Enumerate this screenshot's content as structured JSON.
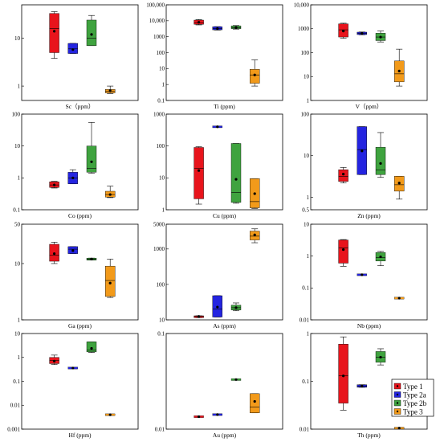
{
  "chart_data": [
    {
      "type": "box",
      "xlabel": "Sc（ppm）",
      "yscale": "log",
      "ylim": [
        0.5,
        50
      ],
      "yticks": [
        {
          "v": 1,
          "t": "1"
        },
        {
          "v": 10,
          "t": "10"
        }
      ],
      "boxes": [
        {
          "group": "Type 1",
          "whisker_low": 3.8,
          "q1": 5,
          "median": 16,
          "q3": 33,
          "whisker_high": 36,
          "mean": 14
        },
        {
          "group": "Type 2a",
          "whisker_low": 4.8,
          "q1": 4.8,
          "median": 6,
          "q3": 7.8,
          "whisker_high": 7.8,
          "mean": 5.8
        },
        {
          "group": "Type 2b",
          "whisker_low": 7,
          "q1": 7,
          "median": 10,
          "q3": 24,
          "whisker_high": 30,
          "mean": 12
        },
        {
          "group": "Type 3",
          "whisker_low": 0.7,
          "q1": 0.72,
          "median": 0.78,
          "q3": 0.85,
          "whisker_high": 1.0,
          "mean": 0.8
        }
      ]
    },
    {
      "type": "box",
      "xlabel": "Ti (ppm)",
      "yscale": "log",
      "ylim": [
        0.1,
        100000
      ],
      "yticks": [
        {
          "v": 0.1,
          "t": "0.1"
        },
        {
          "v": 1,
          "t": "1"
        },
        {
          "v": 10,
          "t": "10"
        },
        {
          "v": 100,
          "t": "100"
        },
        {
          "v": 1000,
          "t": "1000"
        },
        {
          "v": 10000,
          "t": "10,000"
        },
        {
          "v": 100000,
          "t": "100,000"
        }
      ],
      "boxes": [
        {
          "group": "Type 1",
          "whisker_low": 5500,
          "q1": 6000,
          "median": 7500,
          "q3": 11000,
          "whisker_high": 12000,
          "mean": 8000
        },
        {
          "group": "Type 2a",
          "whisker_low": 2600,
          "q1": 2700,
          "median": 3200,
          "q3": 4200,
          "whisker_high": 4300,
          "mean": 3200
        },
        {
          "group": "Type 2b",
          "whisker_low": 3000,
          "q1": 3200,
          "median": 3600,
          "q3": 4800,
          "whisker_high": 5000,
          "mean": 3700
        },
        {
          "group": "Type 3",
          "whisker_low": 0.8,
          "q1": 1.2,
          "median": 4,
          "q3": 9,
          "whisker_high": 35,
          "mean": 4
        }
      ]
    },
    {
      "type": "box",
      "xlabel": "V（ppm）",
      "yscale": "log",
      "ylim": [
        1,
        10000
      ],
      "yticks": [
        {
          "v": 1,
          "t": "1"
        },
        {
          "v": 10,
          "t": "10"
        },
        {
          "v": 100,
          "t": "100"
        },
        {
          "v": 1000,
          "t": "1000"
        },
        {
          "v": 10000,
          "t": "10,000"
        }
      ],
      "boxes": [
        {
          "group": "Type 1",
          "whisker_low": 400,
          "q1": 450,
          "median": 900,
          "q3": 1600,
          "whisker_high": 1700,
          "mean": 800
        },
        {
          "group": "Type 2a",
          "whisker_low": 560,
          "q1": 570,
          "median": 640,
          "q3": 720,
          "whisker_high": 730,
          "mean": 640
        },
        {
          "group": "Type 2b",
          "whisker_low": 280,
          "q1": 320,
          "median": 450,
          "q3": 650,
          "whisker_high": 800,
          "mean": 450
        },
        {
          "group": "Type 3",
          "whisker_low": 4,
          "q1": 6,
          "median": 13,
          "q3": 45,
          "whisker_high": 140,
          "mean": 17
        }
      ]
    },
    {
      "type": "box",
      "xlabel": "Co (ppm)",
      "yscale": "log",
      "ylim": [
        0.1,
        100
      ],
      "yticks": [
        {
          "v": 0.1,
          "t": "0.1"
        },
        {
          "v": 1,
          "t": "1"
        },
        {
          "v": 10,
          "t": "10"
        },
        {
          "v": 100,
          "t": "100"
        }
      ],
      "boxes": [
        {
          "group": "Type 1",
          "whisker_low": 0.48,
          "q1": 0.5,
          "median": 0.6,
          "q3": 0.75,
          "whisker_high": 0.78,
          "mean": 0.6
        },
        {
          "group": "Type 2a",
          "whisker_low": 0.65,
          "q1": 0.65,
          "median": 1.0,
          "q3": 1.5,
          "whisker_high": 1.8,
          "mean": 1.0
        },
        {
          "group": "Type 2b",
          "whisker_low": 1.4,
          "q1": 1.5,
          "median": 2,
          "q3": 10,
          "whisker_high": 55,
          "mean": 3.2
        },
        {
          "group": "Type 3",
          "whisker_low": 0.24,
          "q1": 0.25,
          "median": 0.3,
          "q3": 0.38,
          "whisker_high": 0.55,
          "mean": 0.3
        }
      ]
    },
    {
      "type": "box",
      "xlabel": "Cu (ppm)",
      "yscale": "log",
      "ylim": [
        1,
        1000
      ],
      "yticks": [
        {
          "v": 1,
          "t": "1"
        },
        {
          "v": 10,
          "t": "10"
        },
        {
          "v": 100,
          "t": "100"
        },
        {
          "v": 1000,
          "t": "1000"
        }
      ],
      "boxes": [
        {
          "group": "Type 1",
          "whisker_low": 1.5,
          "q1": 2.2,
          "median": 20,
          "q3": 90,
          "whisker_high": 95,
          "mean": 17
        },
        {
          "group": "Type 2a",
          "whisker_low": 400,
          "q1": 400,
          "median": 400,
          "q3": 400,
          "whisker_high": 400,
          "mean": 400
        },
        {
          "group": "Type 2b",
          "whisker_low": 1.6,
          "q1": 1.7,
          "median": 3.5,
          "q3": 120,
          "whisker_high": 120,
          "mean": 9
        },
        {
          "group": "Type 3",
          "whisker_low": 1.1,
          "q1": 1.15,
          "median": 1.8,
          "q3": 9.5,
          "whisker_high": 9.5,
          "mean": 3.2
        }
      ]
    },
    {
      "type": "box",
      "xlabel": "Zn (ppm)",
      "yscale": "log",
      "ylim": [
        0.5,
        100
      ],
      "yticks": [
        {
          "v": 0.5,
          "t": "0.5"
        },
        {
          "v": 1,
          "t": "1"
        },
        {
          "v": 10,
          "t": "10"
        },
        {
          "v": 100,
          "t": "100"
        }
      ],
      "boxes": [
        {
          "group": "Type 1",
          "whisker_low": 2.2,
          "q1": 2.4,
          "median": 3.2,
          "q3": 4.6,
          "whisker_high": 5.2,
          "mean": 3.6
        },
        {
          "group": "Type 2a",
          "whisker_low": 3.5,
          "q1": 3.5,
          "median": 14,
          "q3": 50,
          "whisker_high": 50,
          "mean": 13
        },
        {
          "group": "Type 2b",
          "whisker_low": 3,
          "q1": 3.5,
          "median": 4.5,
          "q3": 16,
          "whisker_high": 36,
          "mean": 6.5
        },
        {
          "group": "Type 3",
          "whisker_low": 0.9,
          "q1": 1.4,
          "median": 2,
          "q3": 3.2,
          "whisker_high": 3.2,
          "mean": 2.2
        }
      ]
    },
    {
      "type": "box",
      "xlabel": "Ga (ppm)",
      "yscale": "log",
      "ylim": [
        1,
        50
      ],
      "yticks": [
        {
          "v": 1,
          "t": "1"
        },
        {
          "v": 10,
          "t": "10"
        },
        {
          "v": 50,
          "t": "50"
        }
      ],
      "boxes": [
        {
          "group": "Type 1",
          "whisker_low": 10,
          "q1": 11,
          "median": 14,
          "q3": 22,
          "whisker_high": 24,
          "mean": 15
        },
        {
          "group": "Type 2a",
          "whisker_low": 15,
          "q1": 15,
          "median": 18,
          "q3": 20,
          "whisker_high": 20,
          "mean": 17
        },
        {
          "group": "Type 2b",
          "whisker_low": 11.5,
          "q1": 11.5,
          "median": 12,
          "q3": 12.5,
          "whisker_high": 12.5,
          "mean": 12
        },
        {
          "group": "Type 3",
          "whisker_low": 2.5,
          "q1": 2.6,
          "median": 5,
          "q3": 9,
          "whisker_high": 12,
          "mean": 4.5
        }
      ]
    },
    {
      "type": "box",
      "xlabel": "As (ppm)",
      "yscale": "log",
      "ylim": [
        10,
        5000
      ],
      "yticks": [
        {
          "v": 10,
          "t": "10"
        },
        {
          "v": 100,
          "t": "100"
        },
        {
          "v": 1000,
          "t": "1000"
        },
        {
          "v": 5000,
          "t": "5000"
        }
      ],
      "boxes": [
        {
          "group": "Type 1",
          "whisker_low": 11.5,
          "q1": 11.5,
          "median": 12.5,
          "q3": 13,
          "whisker_high": 13,
          "mean": 12.5
        },
        {
          "group": "Type 2a",
          "whisker_low": 12,
          "q1": 12,
          "median": 20,
          "q3": 48,
          "whisker_high": 48,
          "mean": 23
        },
        {
          "group": "Type 2b",
          "whisker_low": 18,
          "q1": 19,
          "median": 22,
          "q3": 26,
          "whisker_high": 30,
          "mean": 22
        },
        {
          "group": "Type 3",
          "whisker_low": 1500,
          "q1": 1800,
          "median": 2300,
          "q3": 3200,
          "whisker_high": 3700,
          "mean": 2500
        }
      ]
    },
    {
      "type": "box",
      "xlabel": "Nb (ppm)",
      "yscale": "log",
      "ylim": [
        0.01,
        10
      ],
      "yticks": [
        {
          "v": 0.01,
          "t": "0.01"
        },
        {
          "v": 0.1,
          "t": "0.1"
        },
        {
          "v": 1,
          "t": "1"
        },
        {
          "v": 10,
          "t": "10"
        }
      ],
      "boxes": [
        {
          "group": "Type 1",
          "whisker_low": 0.48,
          "q1": 0.6,
          "median": 1.8,
          "q3": 3.2,
          "whisker_high": 3.3,
          "mean": 1.6
        },
        {
          "group": "Type 2a",
          "whisker_low": 0.26,
          "q1": 0.26,
          "median": 0.26,
          "q3": 0.27,
          "whisker_high": 0.27,
          "mean": 0.26
        },
        {
          "group": "Type 2b",
          "whisker_low": 0.5,
          "q1": 0.7,
          "median": 0.9,
          "q3": 1.3,
          "whisker_high": 1.4,
          "mean": 0.95
        },
        {
          "group": "Type 3",
          "whisker_low": 0.048,
          "q1": 0.048,
          "median": 0.048,
          "q3": 0.048,
          "whisker_high": 0.048,
          "mean": 0.048
        }
      ]
    },
    {
      "type": "box",
      "xlabel": "Hf (ppm)",
      "yscale": "log",
      "ylim": [
        0.001,
        10
      ],
      "yticks": [
        {
          "v": 0.001,
          "t": "0.001"
        },
        {
          "v": 0.01,
          "t": "0.01"
        },
        {
          "v": 0.1,
          "t": "0.1"
        },
        {
          "v": 1,
          "t": "1"
        },
        {
          "v": 10,
          "t": "10"
        }
      ],
      "boxes": [
        {
          "group": "Type 1",
          "whisker_low": 0.5,
          "q1": 0.55,
          "median": 0.75,
          "q3": 1.0,
          "whisker_high": 1.25,
          "mean": 0.7
        },
        {
          "group": "Type 2a",
          "whisker_low": 0.34,
          "q1": 0.34,
          "median": 0.36,
          "q3": 0.37,
          "whisker_high": 0.37,
          "mean": 0.36
        },
        {
          "group": "Type 2b",
          "whisker_low": 1.6,
          "q1": 1.7,
          "median": 2,
          "q3": 4.5,
          "whisker_high": 4.5,
          "mean": 2.4
        },
        {
          "group": "Type 3",
          "whisker_low": 0.004,
          "q1": 0.004,
          "median": 0.004,
          "q3": 0.004,
          "whisker_high": 0.004,
          "mean": 0.004
        }
      ]
    },
    {
      "type": "box",
      "xlabel": "Au (ppm)",
      "yscale": "log",
      "ylim": [
        0.01,
        0.1
      ],
      "yticks": [
        {
          "v": 0.01,
          "t": "0.01"
        },
        {
          "v": 0.1,
          "t": "0.1"
        }
      ],
      "boxes": [
        {
          "group": "Type 1",
          "whisker_low": 0.0135,
          "q1": 0.0135,
          "median": 0.0135,
          "q3": 0.0135,
          "whisker_high": 0.0135,
          "mean": 0.0135
        },
        {
          "group": "Type 2a",
          "whisker_low": 0.0142,
          "q1": 0.0142,
          "median": 0.0142,
          "q3": 0.0142,
          "whisker_high": 0.0142,
          "mean": 0.0142
        },
        {
          "group": "Type 2b",
          "whisker_low": 0.033,
          "q1": 0.033,
          "median": 0.033,
          "q3": 0.033,
          "whisker_high": 0.033,
          "mean": 0.033
        },
        {
          "group": "Type 3",
          "whisker_low": 0.0148,
          "q1": 0.0148,
          "median": 0.017,
          "q3": 0.0235,
          "whisker_high": 0.0235,
          "mean": 0.0195
        }
      ]
    },
    {
      "type": "box",
      "xlabel": "Th (ppm)",
      "yscale": "log",
      "ylim": [
        0.01,
        1
      ],
      "yticks": [
        {
          "v": 0.01,
          "t": "0.01"
        },
        {
          "v": 0.1,
          "t": "0.1"
        },
        {
          "v": 1,
          "t": "1"
        }
      ],
      "boxes": [
        {
          "group": "Type 1",
          "whisker_low": 0.025,
          "q1": 0.035,
          "median": 0.13,
          "q3": 0.6,
          "whisker_high": 0.85,
          "mean": 0.13
        },
        {
          "group": "Type 2a",
          "whisker_low": 0.075,
          "q1": 0.075,
          "median": 0.08,
          "q3": 0.085,
          "whisker_high": 0.085,
          "mean": 0.08
        },
        {
          "group": "Type 2b",
          "whisker_low": 0.22,
          "q1": 0.25,
          "median": 0.32,
          "q3": 0.42,
          "whisker_high": 0.48,
          "mean": 0.32
        },
        {
          "group": "Type 3",
          "whisker_low": 0.0105,
          "q1": 0.0105,
          "median": 0.0105,
          "q3": 0.0105,
          "whisker_high": 0.0105,
          "mean": 0.0105
        }
      ]
    }
  ],
  "legend": {
    "placement": "bottom-right",
    "items": [
      {
        "label": "Type 1",
        "color": "#e8141c"
      },
      {
        "label": "Type 2a",
        "color": "#2424e0"
      },
      {
        "label": "Type 2b",
        "color": "#3fa33f"
      },
      {
        "label": "Type 3",
        "color": "#f29a1a"
      }
    ]
  }
}
